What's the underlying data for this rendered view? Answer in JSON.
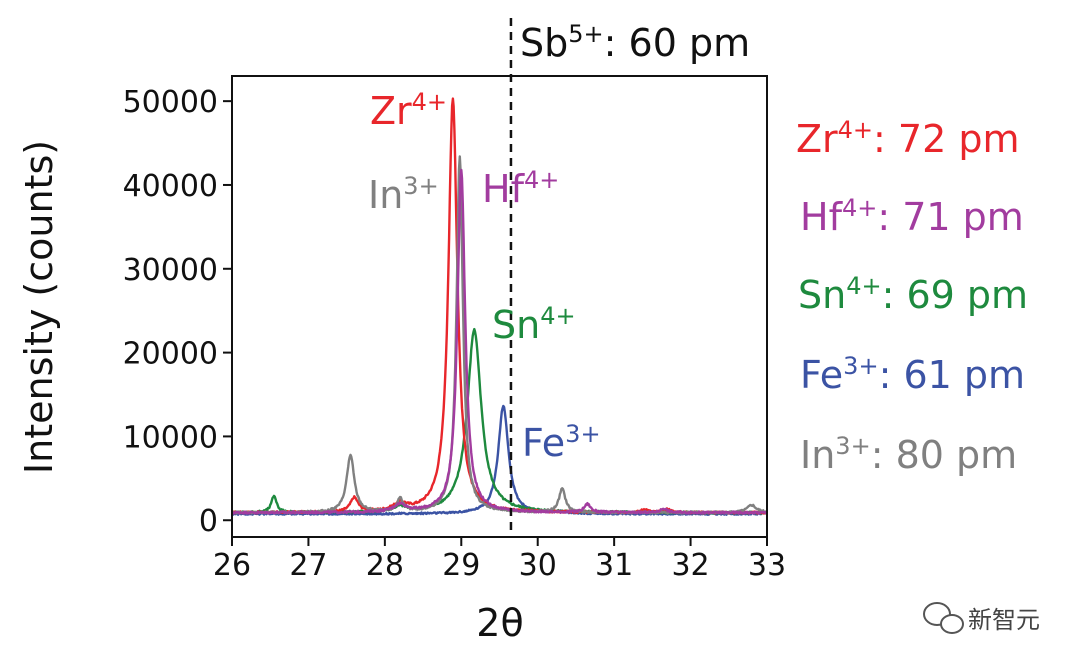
{
  "chart_data": {
    "type": "line",
    "xlabel": "2θ",
    "ylabel": "Intensity (counts)",
    "xlim": [
      26,
      33
    ],
    "ylim": [
      -2000,
      53000
    ],
    "x_ticks": [
      26,
      27,
      28,
      29,
      30,
      31,
      32,
      33
    ],
    "y_ticks": [
      0,
      10000,
      20000,
      30000,
      40000,
      50000
    ],
    "grid": false,
    "reference_line": {
      "x": 29.65,
      "style": "dashed",
      "label_base": "Sb",
      "label_sup": "5+",
      "label_rest": ":  60 pm"
    },
    "series": [
      {
        "ion_base": "Zr",
        "ion_sup": "4+",
        "legend_rest": ":  72 pm",
        "color": "#e8262b",
        "baseline": 900,
        "noise": 120,
        "peaks": [
          [
            28.89,
            49500,
            0.07
          ],
          [
            27.6,
            1700,
            0.06
          ],
          [
            28.2,
            900,
            0.1
          ],
          [
            31.4,
            400,
            0.05
          ],
          [
            31.7,
            400,
            0.05
          ]
        ]
      },
      {
        "ion_base": "Hf",
        "ion_sup": "4+",
        "legend_rest": ":  71 pm",
        "color": "#a23c9f",
        "baseline": 900,
        "noise": 120,
        "peaks": [
          [
            29.0,
            41000,
            0.06
          ],
          [
            28.2,
            900,
            0.1
          ],
          [
            30.65,
            1000,
            0.05
          ],
          [
            31.65,
            500,
            0.05
          ]
        ]
      },
      {
        "ion_base": "Sn",
        "ion_sup": "4+",
        "legend_rest": ": 69 pm",
        "color": "#1e8a3e",
        "baseline": 900,
        "noise": 120,
        "peaks": [
          [
            29.17,
            21800,
            0.11
          ],
          [
            26.55,
            2000,
            0.04
          ],
          [
            28.2,
            600,
            0.1
          ]
        ]
      },
      {
        "ion_base": "Fe",
        "ion_sup": "3+",
        "legend_rest": ": 61 pm",
        "color": "#3b53a4",
        "baseline": 750,
        "noise": 100,
        "peaks": [
          [
            29.55,
            12900,
            0.08
          ],
          [
            30.3,
            200,
            0.1
          ]
        ]
      },
      {
        "ion_base": "In",
        "ion_sup": "3+",
        "legend_rest": ": 80 pm",
        "color": "#808080",
        "baseline": 900,
        "noise": 120,
        "peaks": [
          [
            28.98,
            42500,
            0.05
          ],
          [
            27.55,
            6800,
            0.06
          ],
          [
            28.2,
            1600,
            0.05
          ],
          [
            30.32,
            2800,
            0.05
          ],
          [
            32.8,
            900,
            0.07
          ]
        ]
      }
    ]
  },
  "watermark": "新智元"
}
